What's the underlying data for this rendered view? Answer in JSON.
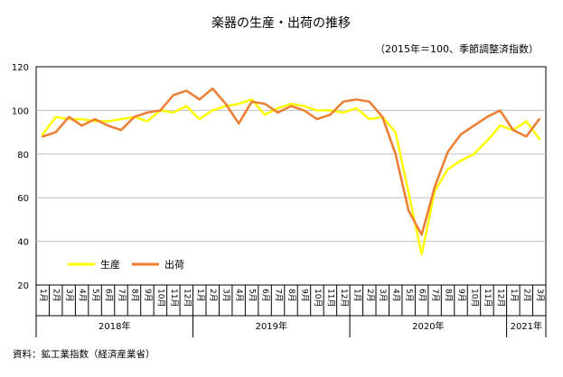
{
  "title": "楽器の生産・出荷の推移",
  "subtitle": "（2015年＝100、季節調整済指数）",
  "source": "資料：鉱工業指数（経済産業省）",
  "chart_data": {
    "type": "line",
    "ylim": [
      20,
      120
    ],
    "yticks": [
      20,
      40,
      60,
      80,
      100,
      120
    ],
    "grid": "horizontal",
    "legend_position": "lower-left",
    "categories": [
      "1月",
      "2月",
      "3月",
      "4月",
      "5月",
      "6月",
      "7月",
      "8月",
      "9月",
      "10月",
      "11月",
      "12月",
      "1月",
      "2月",
      "3月",
      "4月",
      "5月",
      "6月",
      "7月",
      "8月",
      "9月",
      "10月",
      "11月",
      "12月",
      "1月",
      "2月",
      "3月",
      "4月",
      "5月",
      "6月",
      "7月",
      "8月",
      "9月",
      "10月",
      "11月",
      "12月",
      "1月",
      "2月",
      "3月"
    ],
    "years": [
      {
        "label": "2018年",
        "start": 0,
        "end": 12
      },
      {
        "label": "2019年",
        "start": 12,
        "end": 24
      },
      {
        "label": "2020年",
        "start": 24,
        "end": 36
      },
      {
        "label": "2021年",
        "start": 36,
        "end": 39
      }
    ],
    "series": [
      {
        "name": "生産",
        "color": "#ffff00",
        "values": [
          89,
          97,
          96,
          96,
          95,
          95,
          96,
          97,
          95,
          100,
          99,
          102,
          96,
          100,
          102,
          103,
          105,
          98,
          101,
          103,
          102,
          100,
          100,
          99,
          101,
          96,
          97,
          90,
          62,
          34,
          63,
          73,
          77,
          80,
          86,
          93,
          91,
          95,
          87
        ]
      },
      {
        "name": "出荷",
        "color": "#ed7d31",
        "values": [
          88,
          90,
          97,
          93,
          96,
          93,
          91,
          97,
          99,
          100,
          107,
          109,
          105,
          110,
          103,
          94,
          104,
          103,
          99,
          102,
          100,
          96,
          98,
          104,
          105,
          104,
          97,
          80,
          54,
          43,
          65,
          81,
          89,
          93,
          97,
          100,
          91,
          88,
          96
        ]
      }
    ]
  }
}
